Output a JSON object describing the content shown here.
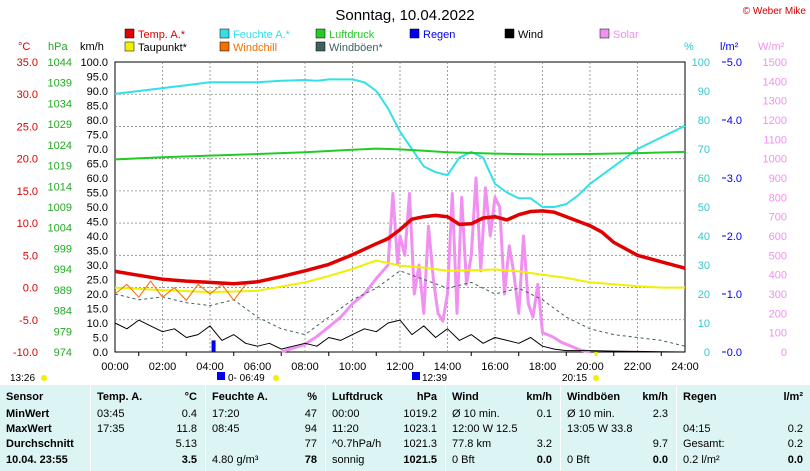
{
  "title": "Sonntag, 10.04.2022",
  "copyright": "© Weber Mike",
  "legend": [
    {
      "label": "Temp. A.*",
      "color": "#e00000"
    },
    {
      "label": "Feuchte A.*",
      "color": "#33e0e8"
    },
    {
      "label": "Luftdruck",
      "color": "#22cc22"
    },
    {
      "label": "Regen",
      "color": "#0000ee"
    },
    {
      "label": "Wind",
      "color": "#000000"
    },
    {
      "label": "Solar",
      "color": "#f090f0"
    },
    {
      "label": "Taupunkt*",
      "color": "#f0f000"
    },
    {
      "label": "Windchill",
      "color": "#f07000"
    },
    {
      "label": "Windböen*",
      "color": "#406060"
    }
  ],
  "axis_units": {
    "temp": "°C",
    "press": "hPa",
    "wind": "km/h",
    "hum": "%",
    "rain": "l/m²",
    "solar": "W/m²"
  },
  "markers": {
    "sunrise": "13:26",
    "moonrise": "0- 06:49",
    "moon_phase": "12:39",
    "sunset": "20:15"
  },
  "chart_data": {
    "type": "line",
    "x_ticks": [
      "00:00",
      "02:00",
      "04:00",
      "06:00",
      "08:00",
      "10:00",
      "12:00",
      "14:00",
      "16:00",
      "18:00",
      "20:00",
      "22:00",
      "24:00"
    ],
    "xlim": [
      0,
      24
    ],
    "y_axes": {
      "temp": {
        "ticks": [
          "35.0",
          "30.0",
          "25.0",
          "20.0",
          "15.0",
          "10.0",
          "5.0",
          "0.0",
          "-5.0",
          "-10.0"
        ],
        "range": [
          -10,
          35
        ]
      },
      "press": {
        "ticks": [
          "1044",
          "1039",
          "1034",
          "1029",
          "1024",
          "1019",
          "1014",
          "1009",
          "1004",
          "999",
          "994",
          "989",
          "984",
          "979",
          "974"
        ],
        "range": [
          974,
          1044
        ]
      },
      "wind": {
        "ticks": [
          "100.0",
          "95.0",
          "90.0",
          "85.0",
          "80.0",
          "75.0",
          "70.0",
          "65.0",
          "60.0",
          "55.0",
          "50.0",
          "45.0",
          "40.0",
          "35.0",
          "30.0",
          "25.0",
          "20.0",
          "15.0",
          "10.0",
          "5.0",
          "0.0"
        ],
        "range": [
          0,
          100
        ]
      },
      "hum": {
        "ticks": [
          "100",
          "90",
          "80",
          "70",
          "60",
          "50",
          "40",
          "30",
          "20",
          "10",
          "0"
        ],
        "range": [
          0,
          100
        ]
      },
      "rain": {
        "ticks": [
          "5.0",
          "4.0",
          "3.0",
          "2.0",
          "1.0",
          "0.0"
        ],
        "range": [
          0,
          5
        ]
      },
      "solar": {
        "ticks": [
          "1500",
          "1400",
          "1300",
          "1200",
          "1100",
          "1000",
          "900",
          "800",
          "700",
          "600",
          "500",
          "400",
          "300",
          "200",
          "100",
          "0"
        ],
        "range": [
          0,
          1500
        ]
      }
    },
    "series": [
      {
        "name": "Temp. A.*",
        "axis": "temp",
        "color": "#e00000",
        "width": 3.5,
        "x": [
          0,
          1,
          2,
          3,
          4,
          5,
          6,
          7,
          8,
          9,
          10,
          11,
          11.5,
          12,
          12.5,
          13,
          13.5,
          14,
          14.5,
          15,
          15.5,
          16,
          16.5,
          17,
          17.5,
          18,
          18.5,
          19,
          19.5,
          20,
          20.5,
          21,
          22,
          23,
          24
        ],
        "y": [
          2.5,
          1.9,
          1.3,
          1.0,
          0.8,
          0.6,
          0.9,
          1.7,
          2.6,
          3.6,
          5.1,
          6.8,
          7.6,
          9.0,
          10.6,
          11.0,
          11.2,
          11.0,
          9.8,
          9.9,
          10.8,
          11.0,
          10.5,
          11.3,
          11.8,
          11.9,
          11.7,
          11.0,
          10.3,
          9.6,
          8.6,
          7.0,
          5.0,
          4.0,
          3.0
        ]
      },
      {
        "name": "Feuchte A.*",
        "axis": "hum",
        "color": "#33e0e8",
        "width": 2,
        "x": [
          0,
          1,
          2,
          3,
          4,
          5,
          6,
          7,
          8,
          8.5,
          9,
          10,
          10.5,
          11,
          11.5,
          12,
          12.5,
          13,
          13.5,
          14,
          14.5,
          15,
          15.5,
          16,
          16.5,
          17,
          17.5,
          18,
          18.5,
          19,
          19.5,
          20,
          21,
          22,
          23,
          24
        ],
        "y": [
          89,
          90,
          91,
          92,
          93,
          93,
          93,
          93.5,
          93.8,
          93.5,
          94,
          94,
          93,
          90,
          84,
          76,
          70,
          64,
          62,
          61,
          67,
          69,
          67,
          58,
          55,
          53,
          53,
          50,
          50,
          51,
          54,
          58,
          64,
          70,
          74,
          78
        ]
      },
      {
        "name": "Luftdruck",
        "axis": "press",
        "color": "#22cc22",
        "width": 2,
        "x": [
          0,
          2,
          4,
          6,
          8,
          10,
          11,
          12,
          13,
          14,
          16,
          18,
          20,
          22,
          24
        ],
        "y": [
          1020.5,
          1021.0,
          1021.4,
          1021.8,
          1022.2,
          1022.8,
          1023.1,
          1022.9,
          1022.6,
          1022.2,
          1021.9,
          1021.7,
          1021.8,
          1022.0,
          1022.3
        ]
      },
      {
        "name": "Taupunkt*",
        "axis": "temp",
        "color": "#f0f000",
        "width": 2,
        "x": [
          0,
          2,
          4,
          6,
          8,
          9,
          10,
          11,
          12,
          13,
          14,
          15,
          16,
          17,
          18,
          19,
          20,
          21,
          22,
          23,
          24
        ],
        "y": [
          0.0,
          -0.4,
          -0.7,
          -0.5,
          0.8,
          1.8,
          2.9,
          4.2,
          3.4,
          3.1,
          2.6,
          2.7,
          2.8,
          2.5,
          2.0,
          1.5,
          0.8,
          0.5,
          0.2,
          0.0,
          0.0
        ]
      },
      {
        "name": "Windchill",
        "axis": "temp",
        "color": "#f07000",
        "width": 1,
        "x": [
          0,
          0.5,
          1,
          1.5,
          2,
          2.5,
          3,
          3.5,
          4,
          4.5,
          5,
          5.5,
          6,
          7,
          8,
          9,
          10,
          11,
          12
        ],
        "y": [
          -1,
          0.5,
          -1.5,
          1,
          -1.5,
          0,
          -2,
          0.5,
          -1,
          0.5,
          -2,
          0.5,
          0.9,
          1.7,
          2.6,
          3.6,
          5.1,
          6.8,
          9.0
        ]
      },
      {
        "name": "Windböen*",
        "axis": "wind",
        "color": "#406060",
        "width": 1,
        "dash": "3,3",
        "x": [
          0,
          1,
          2,
          3,
          4,
          5,
          6,
          7,
          8,
          9,
          10,
          11,
          12,
          13,
          14,
          15,
          16,
          17,
          18,
          19,
          20,
          21,
          22,
          23,
          24
        ],
        "y": [
          20,
          18,
          19,
          17,
          16,
          18,
          12,
          8,
          6,
          12,
          18,
          22,
          28,
          25,
          22,
          24,
          20,
          22,
          18,
          12,
          8,
          6,
          5,
          4,
          2
        ]
      },
      {
        "name": "Wind",
        "axis": "wind",
        "color": "#000000",
        "width": 1,
        "x": [
          0,
          0.5,
          1,
          1.5,
          2,
          2.5,
          3,
          3.5,
          4,
          4.5,
          5,
          5.5,
          6,
          6.5,
          7,
          7.5,
          8,
          8.5,
          9,
          9.5,
          10,
          10.5,
          11,
          11.5,
          12,
          12.5,
          13,
          13.5,
          14,
          14.5,
          15,
          15.5,
          16,
          16.5,
          17,
          17.5,
          18,
          18.5,
          19,
          20,
          21,
          22,
          23,
          24
        ],
        "y": [
          10,
          8,
          11,
          9,
          7,
          8,
          5,
          6,
          9,
          4,
          6,
          3,
          2,
          3,
          1,
          2,
          3,
          2,
          5,
          4,
          6,
          8,
          7,
          10,
          11,
          6,
          9,
          5,
          8,
          4,
          6,
          3,
          5,
          4,
          3,
          5,
          2,
          1,
          0.5,
          0.5,
          0.3,
          0.2,
          0.1,
          0
        ]
      },
      {
        "name": "Solar",
        "axis": "solar",
        "color": "#f090f0",
        "width": 3,
        "x": [
          7,
          8,
          8.5,
          9,
          9.5,
          10,
          10.5,
          11,
          11.5,
          11.7,
          11.9,
          12.0,
          12.2,
          12.4,
          12.6,
          12.8,
          13.0,
          13.2,
          13.4,
          13.6,
          13.8,
          14.0,
          14.2,
          14.4,
          14.6,
          14.8,
          15.0,
          15.2,
          15.4,
          15.6,
          15.8,
          16.0,
          16.2,
          16.4,
          16.6,
          16.8,
          17.0,
          17.2,
          17.4,
          17.6,
          17.8,
          18.0,
          18.4,
          18.8,
          19.2,
          19.6,
          20
        ],
        "y": [
          0,
          40,
          80,
          130,
          180,
          250,
          300,
          380,
          450,
          820,
          460,
          600,
          500,
          820,
          300,
          450,
          200,
          650,
          380,
          200,
          160,
          300,
          820,
          200,
          800,
          350,
          500,
          900,
          420,
          850,
          600,
          800,
          750,
          300,
          550,
          400,
          200,
          600,
          250,
          180,
          350,
          100,
          80,
          50,
          30,
          10,
          0
        ]
      },
      {
        "name": "Regen",
        "axis": "rain",
        "color": "#0000ee",
        "width": 3,
        "type": "bars",
        "x": [
          4.15
        ],
        "y": [
          0.2
        ]
      }
    ]
  },
  "table": {
    "columns": [
      {
        "header": [
          "Sensor",
          ""
        ],
        "rows": [
          [
            "MinWert",
            ""
          ],
          [
            "MaxWert",
            ""
          ],
          [
            "Durchschnitt",
            ""
          ],
          [
            "10.04. 23:55",
            ""
          ]
        ]
      },
      {
        "header": [
          "Temp. A.",
          "°C"
        ],
        "rows": [
          [
            "03:45",
            "0.4"
          ],
          [
            "17:35",
            "11.8"
          ],
          [
            "",
            "5.13"
          ],
          [
            "",
            "3.5"
          ]
        ]
      },
      {
        "header": [
          "Feuchte A.",
          "%"
        ],
        "rows": [
          [
            "17:20",
            "47"
          ],
          [
            "08:45",
            "94"
          ],
          [
            "",
            "77"
          ],
          [
            "4.80 g/m³",
            "78"
          ]
        ]
      },
      {
        "header": [
          "Luftdruck",
          "hPa"
        ],
        "rows": [
          [
            "00:00",
            "1019.2"
          ],
          [
            "11:20",
            "1023.1"
          ],
          [
            "^0.7hPa/h",
            "1021.3"
          ],
          [
            "sonnig",
            "1021.5"
          ]
        ]
      },
      {
        "header": [
          "Wind",
          "km/h"
        ],
        "rows": [
          [
            "Ø 10 min.",
            "0.1"
          ],
          [
            "12:00      W 12.5",
            ""
          ],
          [
            "77.8 km",
            "3.2"
          ],
          [
            "0 Bft",
            "0.0"
          ]
        ]
      },
      {
        "header": [
          "Windböen",
          "km/h"
        ],
        "rows": [
          [
            "Ø 10 min.",
            "2.3"
          ],
          [
            "13:05      W 33.8",
            ""
          ],
          [
            "",
            "9.7"
          ],
          [
            "0 Bft",
            "0.0"
          ]
        ]
      },
      {
        "header": [
          "Regen",
          "l/m²"
        ],
        "rows": [
          [
            "",
            ""
          ],
          [
            "04:15",
            "0.2"
          ],
          [
            "Gesamt:",
            "0.2"
          ],
          [
            "0.2 l/m²",
            "0.0"
          ]
        ]
      }
    ]
  }
}
